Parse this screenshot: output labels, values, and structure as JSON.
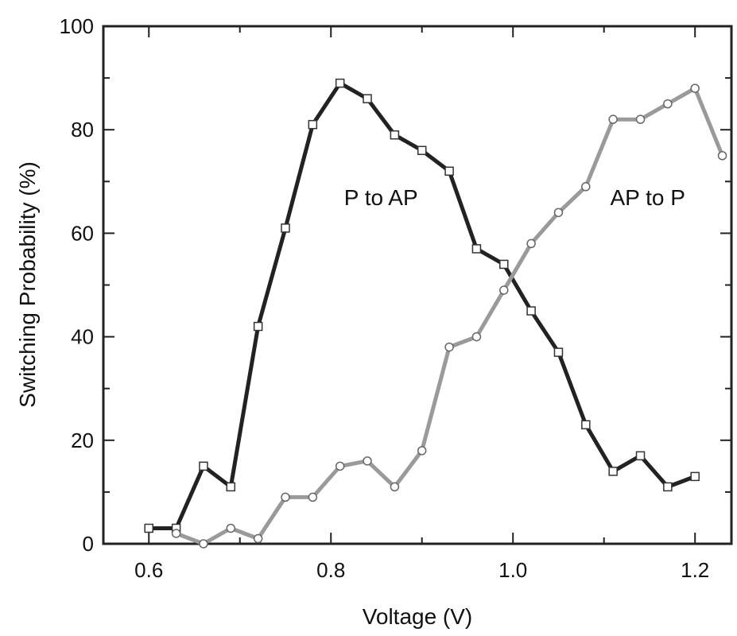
{
  "chart_data": {
    "type": "line",
    "title": "",
    "xlabel": "Voltage (V)",
    "ylabel": "Switching Probability (%)",
    "xlim": [
      0.55,
      1.24
    ],
    "ylim": [
      0,
      100
    ],
    "xticks": [
      0.6,
      0.8,
      1.0,
      1.2
    ],
    "xtick_labels": [
      "0.6",
      "0.8",
      "1.0",
      "1.2"
    ],
    "yticks": [
      0,
      20,
      40,
      60,
      80,
      100
    ],
    "ytick_labels": [
      "0",
      "20",
      "40",
      "60",
      "80",
      "100"
    ],
    "grid": false,
    "legend": "none",
    "annotations": [
      {
        "text": "P to AP",
        "x": 0.855,
        "y": 67
      },
      {
        "text": "AP to P",
        "x": 1.148,
        "y": 67
      }
    ],
    "series": [
      {
        "marker": "square",
        "color": "#222222",
        "x": [
          0.6,
          0.63,
          0.66,
          0.69,
          0.72,
          0.75,
          0.78,
          0.81,
          0.84,
          0.87,
          0.9,
          0.93,
          0.96,
          0.99,
          1.02,
          1.05,
          1.08,
          1.11,
          1.14,
          1.17,
          1.2
        ],
        "y": [
          3,
          3,
          15,
          11,
          42,
          61,
          81,
          89,
          86,
          79,
          76,
          72,
          57,
          54,
          45,
          37,
          23,
          14,
          17,
          11,
          13
        ]
      },
      {
        "marker": "circle",
        "color": "#9a9a9a",
        "x": [
          0.63,
          0.66,
          0.69,
          0.72,
          0.75,
          0.78,
          0.81,
          0.84,
          0.87,
          0.9,
          0.93,
          0.96,
          0.99,
          1.02,
          1.05,
          1.08,
          1.11,
          1.14,
          1.17,
          1.2,
          1.23
        ],
        "y": [
          2,
          0,
          3,
          1,
          9,
          9,
          15,
          16,
          11,
          18,
          38,
          40,
          49,
          58,
          64,
          69,
          82,
          82,
          85,
          88,
          75
        ]
      }
    ]
  }
}
